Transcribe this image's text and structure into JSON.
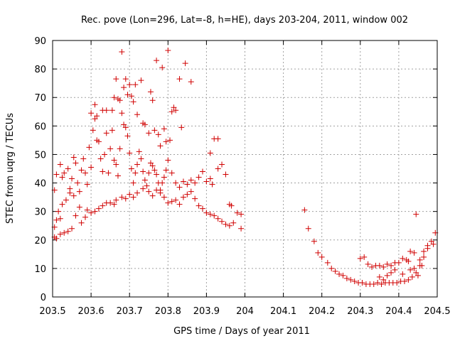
{
  "chart_data": {
    "type": "scatter",
    "title": "Rec. pove (Lon=296, Lat=-8, h=HE), days 203-204, 2011, window 002",
    "xlabel": "GPS time / Days of year 2011",
    "ylabel": "STEC from uqrg / TECUs",
    "xlim": [
      203.5,
      204.5
    ],
    "ylim": [
      0,
      90
    ],
    "x_ticks": [
      203.5,
      203.6,
      203.7,
      203.8,
      203.9,
      204.0,
      204.1,
      204.2,
      204.3,
      204.4,
      204.5
    ],
    "x_tick_labels": [
      "203.5",
      "203.6",
      "203.7",
      "203.8",
      "203.9",
      "204",
      "204.1",
      "204.2",
      "204.3",
      "204.4",
      "204.5"
    ],
    "y_ticks": [
      0,
      10,
      20,
      30,
      40,
      50,
      60,
      70,
      80,
      90
    ],
    "y_tick_labels": [
      "0",
      "10",
      "20",
      "30",
      "40",
      "50",
      "60",
      "70",
      "80",
      "90"
    ],
    "grid": true,
    "marker": "plus",
    "marker_color": "#d00000",
    "series": [
      {
        "name": "STEC",
        "points": [
          [
            203.505,
            21.0
          ],
          [
            203.51,
            20.5
          ],
          [
            203.52,
            22.0
          ],
          [
            203.53,
            22.5
          ],
          [
            203.54,
            23.0
          ],
          [
            203.55,
            24.0
          ],
          [
            203.505,
            24.5
          ],
          [
            203.51,
            27.0
          ],
          [
            203.515,
            30.0
          ],
          [
            203.52,
            27.5
          ],
          [
            203.525,
            32.5
          ],
          [
            203.535,
            34.0
          ],
          [
            203.545,
            36.5
          ],
          [
            203.555,
            35.5
          ],
          [
            203.56,
            28.5
          ],
          [
            203.57,
            31.5
          ],
          [
            203.575,
            26.0
          ],
          [
            203.585,
            28.0
          ],
          [
            203.59,
            30.5
          ],
          [
            203.6,
            29.5
          ],
          [
            203.61,
            30.0
          ],
          [
            203.62,
            31.0
          ],
          [
            203.63,
            32.0
          ],
          [
            203.64,
            33.0
          ],
          [
            203.65,
            33.0
          ],
          [
            203.66,
            32.5
          ],
          [
            203.665,
            34.0
          ],
          [
            203.68,
            35.0
          ],
          [
            203.69,
            34.5
          ],
          [
            203.7,
            36.0
          ],
          [
            203.71,
            35.0
          ],
          [
            203.72,
            36.5
          ],
          [
            203.735,
            38.0
          ],
          [
            203.75,
            37.0
          ],
          [
            203.76,
            35.5
          ],
          [
            203.77,
            37.5
          ],
          [
            203.78,
            36.5
          ],
          [
            203.79,
            35.0
          ],
          [
            203.8,
            33.0
          ],
          [
            203.81,
            33.5
          ],
          [
            203.82,
            34.0
          ],
          [
            203.83,
            32.5
          ],
          [
            203.84,
            35.0
          ],
          [
            203.85,
            36.0
          ],
          [
            203.86,
            37.0
          ],
          [
            203.87,
            34.5
          ],
          [
            203.88,
            32.0
          ],
          [
            203.89,
            31.0
          ],
          [
            203.9,
            29.5
          ],
          [
            203.91,
            29.0
          ],
          [
            203.92,
            28.5
          ],
          [
            203.93,
            27.5
          ],
          [
            203.94,
            26.5
          ],
          [
            203.95,
            25.5
          ],
          [
            203.96,
            25.0
          ],
          [
            203.97,
            26.0
          ],
          [
            203.98,
            29.5
          ],
          [
            203.99,
            29.0
          ],
          [
            203.99,
            24.0
          ],
          [
            203.505,
            37.5
          ],
          [
            203.51,
            43.0
          ],
          [
            203.52,
            46.5
          ],
          [
            203.525,
            42.0
          ],
          [
            203.53,
            43.5
          ],
          [
            203.54,
            45.0
          ],
          [
            203.545,
            38.0
          ],
          [
            203.55,
            41.5
          ],
          [
            203.555,
            49.0
          ],
          [
            203.56,
            47.0
          ],
          [
            203.565,
            40.0
          ],
          [
            203.57,
            37.0
          ],
          [
            203.575,
            44.5
          ],
          [
            203.58,
            48.5
          ],
          [
            203.585,
            43.5
          ],
          [
            203.59,
            39.5
          ],
          [
            203.595,
            52.5
          ],
          [
            203.6,
            45.5
          ],
          [
            203.605,
            58.5
          ],
          [
            203.61,
            62.5
          ],
          [
            203.615,
            55.0
          ],
          [
            203.62,
            54.5
          ],
          [
            203.625,
            48.5
          ],
          [
            203.63,
            44.0
          ],
          [
            203.635,
            50.0
          ],
          [
            203.64,
            57.5
          ],
          [
            203.645,
            43.5
          ],
          [
            203.65,
            52.0
          ],
          [
            203.655,
            58.5
          ],
          [
            203.66,
            48.0
          ],
          [
            203.665,
            46.5
          ],
          [
            203.67,
            42.5
          ],
          [
            203.675,
            52.0
          ],
          [
            203.68,
            64.5
          ],
          [
            203.685,
            60.5
          ],
          [
            203.69,
            59.5
          ],
          [
            203.695,
            56.5
          ],
          [
            203.7,
            50.5
          ],
          [
            203.705,
            45.0
          ],
          [
            203.71,
            40.0
          ],
          [
            203.715,
            43.5
          ],
          [
            203.72,
            46.5
          ],
          [
            203.725,
            51.0
          ],
          [
            203.73,
            48.5
          ],
          [
            203.735,
            44.0
          ],
          [
            203.74,
            41.0
          ],
          [
            203.745,
            39.0
          ],
          [
            203.75,
            43.5
          ],
          [
            203.755,
            47.0
          ],
          [
            203.76,
            46.0
          ],
          [
            203.765,
            44.5
          ],
          [
            203.77,
            43.0
          ],
          [
            203.775,
            40.0
          ],
          [
            203.78,
            37.5
          ],
          [
            203.785,
            40.0
          ],
          [
            203.79,
            42.0
          ],
          [
            203.795,
            44.5
          ],
          [
            203.8,
            48.0
          ],
          [
            203.81,
            43.5
          ],
          [
            203.82,
            40.0
          ],
          [
            203.83,
            38.5
          ],
          [
            203.84,
            40.5
          ],
          [
            203.85,
            39.5
          ],
          [
            203.86,
            41.0
          ],
          [
            203.87,
            40.0
          ],
          [
            203.88,
            42.0
          ],
          [
            203.89,
            44.0
          ],
          [
            203.9,
            40.5
          ],
          [
            203.91,
            41.5
          ],
          [
            203.915,
            39.5
          ],
          [
            203.93,
            45.0
          ],
          [
            203.94,
            46.5
          ],
          [
            203.95,
            43.0
          ],
          [
            203.96,
            32.5
          ],
          [
            203.965,
            32.0
          ],
          [
            203.6,
            64.5
          ],
          [
            203.61,
            67.5
          ],
          [
            203.615,
            63.5
          ],
          [
            203.63,
            65.5
          ],
          [
            203.64,
            65.5
          ],
          [
            203.655,
            65.5
          ],
          [
            203.66,
            70.0
          ],
          [
            203.665,
            76.5
          ],
          [
            203.67,
            69.5
          ],
          [
            203.675,
            69.0
          ],
          [
            203.68,
            86.0
          ],
          [
            203.685,
            73.5
          ],
          [
            203.69,
            76.5
          ],
          [
            203.695,
            71.0
          ],
          [
            203.7,
            74.5
          ],
          [
            203.705,
            70.5
          ],
          [
            203.71,
            68.5
          ],
          [
            203.715,
            74.5
          ],
          [
            203.72,
            64.0
          ],
          [
            203.73,
            76.0
          ],
          [
            203.735,
            61.0
          ],
          [
            203.74,
            60.5
          ],
          [
            203.75,
            57.5
          ],
          [
            203.755,
            72.0
          ],
          [
            203.76,
            69.0
          ],
          [
            203.765,
            58.5
          ],
          [
            203.77,
            83.0
          ],
          [
            203.775,
            57.0
          ],
          [
            203.78,
            53.0
          ],
          [
            203.785,
            80.5
          ],
          [
            203.79,
            59.0
          ],
          [
            203.795,
            54.5
          ],
          [
            203.8,
            86.5
          ],
          [
            203.805,
            55.0
          ],
          [
            203.81,
            65.0
          ],
          [
            203.815,
            66.5
          ],
          [
            203.82,
            65.5
          ],
          [
            203.83,
            76.5
          ],
          [
            203.835,
            59.5
          ],
          [
            203.845,
            82.0
          ],
          [
            203.86,
            75.5
          ],
          [
            203.91,
            50.5
          ],
          [
            203.92,
            55.5
          ],
          [
            203.93,
            55.5
          ],
          [
            204.155,
            30.5
          ],
          [
            204.165,
            24.0
          ],
          [
            204.18,
            19.5
          ],
          [
            204.19,
            15.5
          ],
          [
            204.2,
            14.0
          ],
          [
            204.215,
            12.0
          ],
          [
            204.225,
            10.0
          ],
          [
            204.235,
            9.0
          ],
          [
            204.245,
            8.0
          ],
          [
            204.255,
            7.5
          ],
          [
            204.265,
            6.5
          ],
          [
            204.275,
            6.0
          ],
          [
            204.285,
            5.5
          ],
          [
            204.295,
            5.0
          ],
          [
            204.305,
            5.0
          ],
          [
            204.315,
            4.5
          ],
          [
            204.325,
            4.5
          ],
          [
            204.335,
            4.5
          ],
          [
            204.345,
            5.0
          ],
          [
            204.355,
            4.5
          ],
          [
            204.365,
            5.0
          ],
          [
            204.375,
            5.0
          ],
          [
            204.385,
            5.0
          ],
          [
            204.395,
            5.0
          ],
          [
            204.405,
            5.5
          ],
          [
            204.415,
            5.5
          ],
          [
            204.425,
            6.0
          ],
          [
            204.435,
            7.0
          ],
          [
            204.445,
            8.5
          ],
          [
            204.455,
            11.0
          ],
          [
            204.465,
            14.0
          ],
          [
            204.475,
            17.0
          ],
          [
            204.485,
            19.5
          ],
          [
            204.495,
            22.5
          ],
          [
            204.3,
            13.5
          ],
          [
            204.31,
            14.0
          ],
          [
            204.32,
            11.5
          ],
          [
            204.33,
            10.5
          ],
          [
            204.34,
            11.0
          ],
          [
            204.35,
            11.0
          ],
          [
            204.36,
            10.5
          ],
          [
            204.37,
            11.5
          ],
          [
            204.38,
            11.0
          ],
          [
            204.39,
            12.0
          ],
          [
            204.4,
            12.0
          ],
          [
            204.41,
            13.5
          ],
          [
            204.42,
            13.0
          ],
          [
            204.43,
            16.0
          ],
          [
            204.44,
            15.5
          ],
          [
            204.445,
            29.0
          ],
          [
            204.455,
            13.0
          ],
          [
            204.465,
            16.0
          ],
          [
            204.475,
            18.0
          ],
          [
            204.49,
            18.5
          ],
          [
            204.35,
            7.0
          ],
          [
            204.36,
            6.0
          ],
          [
            204.37,
            7.5
          ],
          [
            204.38,
            8.5
          ],
          [
            204.39,
            9.5
          ],
          [
            204.41,
            8.0
          ],
          [
            204.43,
            9.5
          ],
          [
            204.44,
            10.0
          ],
          [
            204.45,
            7.5
          ],
          [
            204.425,
            12.5
          ],
          [
            204.46,
            11.0
          ]
        ]
      }
    ]
  }
}
